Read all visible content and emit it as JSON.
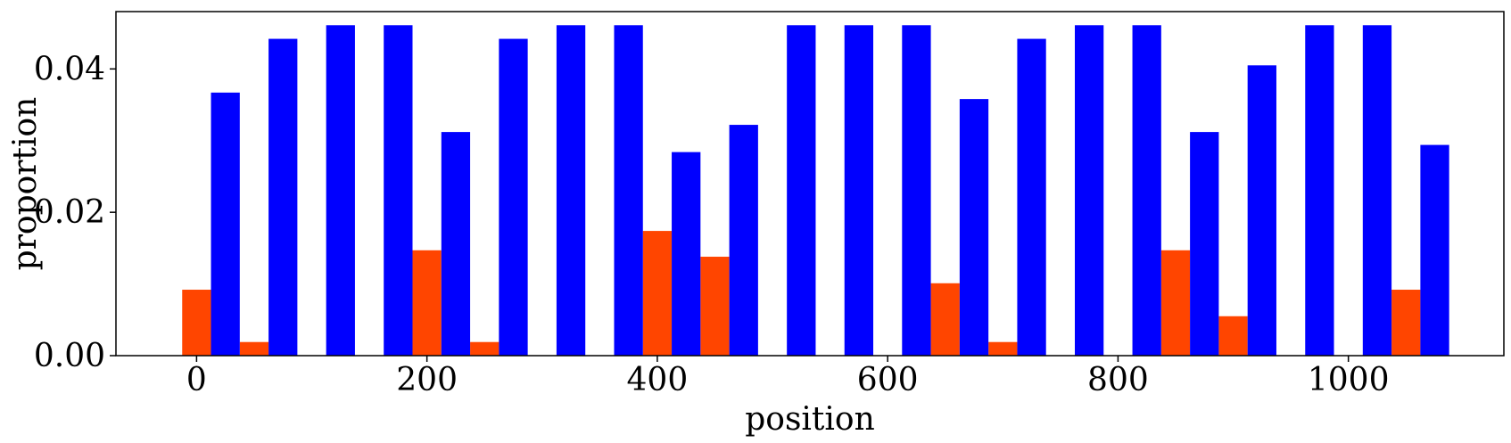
{
  "chart_data": {
    "type": "bar",
    "xlabel": "position",
    "ylabel": "proportion",
    "xlim": [
      -70,
      1135
    ],
    "ylim": [
      0,
      0.048
    ],
    "x_ticks": [
      0,
      200,
      400,
      600,
      800,
      1000
    ],
    "x_tick_labels": [
      "0",
      "200",
      "400",
      "600",
      "800",
      "1000"
    ],
    "y_ticks": [
      0,
      0.02,
      0.04
    ],
    "y_tick_labels": [
      "0.00",
      "0.02",
      "0.04"
    ],
    "bar_width": 25,
    "grid": false,
    "legend": "none",
    "series": [
      {
        "color": "#FF4500",
        "x": [
          0,
          50,
          200,
          250,
          400,
          450,
          650,
          700,
          850,
          900,
          1050
        ],
        "values": [
          0.0092,
          0.0019,
          0.0147,
          0.0019,
          0.0174,
          0.0138,
          0.0101,
          0.0019,
          0.0147,
          0.0055,
          0.0092
        ]
      },
      {
        "color": "#0000FF",
        "x": [
          25,
          75,
          125,
          175,
          225,
          275,
          325,
          375,
          425,
          475,
          525,
          575,
          625,
          675,
          725,
          775,
          825,
          875,
          925,
          975,
          1025,
          1075
        ],
        "values": [
          0.0367,
          0.0442,
          0.0461,
          0.0461,
          0.0312,
          0.0442,
          0.0461,
          0.0461,
          0.0284,
          0.0322,
          0.0461,
          0.0461,
          0.0461,
          0.0358,
          0.0442,
          0.0461,
          0.0461,
          0.0312,
          0.0405,
          0.0461,
          0.0461,
          0.0294
        ]
      }
    ]
  }
}
